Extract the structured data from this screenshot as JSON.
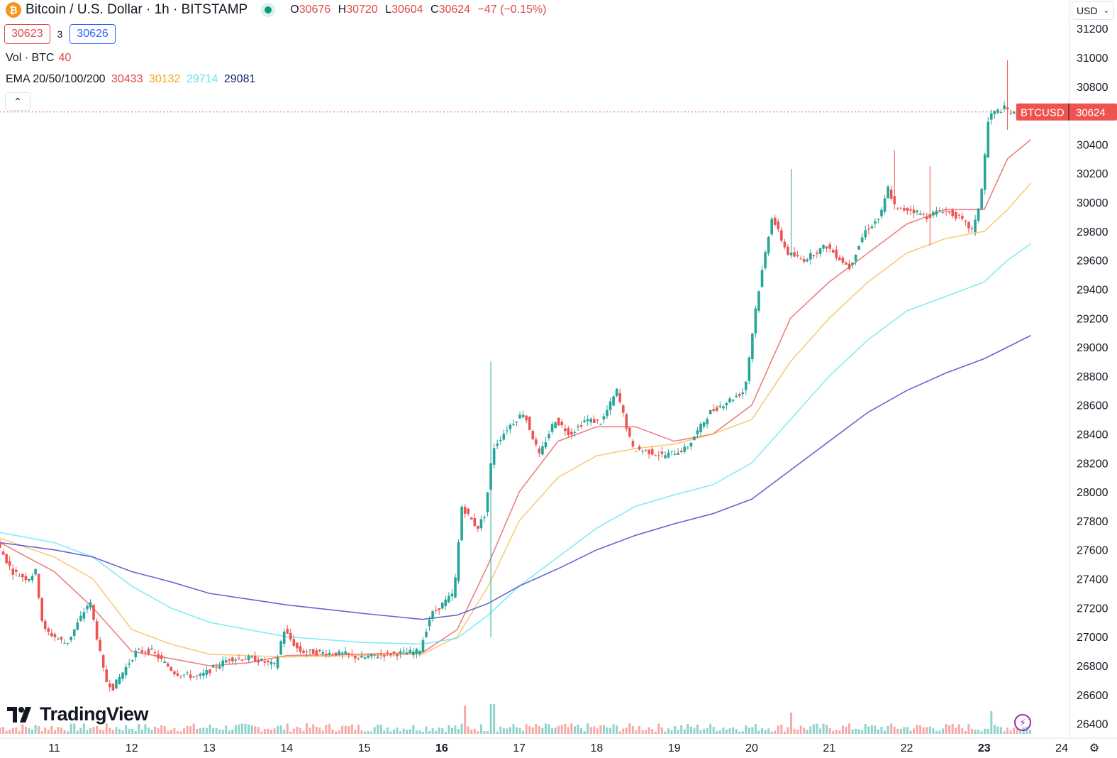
{
  "header": {
    "symbol_title": "Bitcoin / U.S. Dollar · 1h · BITSTAMP",
    "ohlc": {
      "open_label": "O",
      "open": "30676",
      "high_label": "H",
      "high": "30720",
      "low_label": "L",
      "low": "30604",
      "close_label": "C",
      "close": "30624",
      "change": "−47 (−0.15%)"
    },
    "sell_price": "30623",
    "spread": "3",
    "buy_price": "30626",
    "volume_label": "Vol · BTC",
    "volume_value": "40",
    "ema_label": "EMA 20/50/100/200",
    "ema_values": [
      "30433",
      "30132",
      "29714",
      "29081"
    ],
    "collapse_icon": "chevron-up-icon",
    "currency": "USD"
  },
  "watermark": "TradingView",
  "colors": {
    "up": "#26a69a",
    "down": "#ef5350",
    "ema20": "#e8605f",
    "ema50": "#f5a623",
    "ema100": "#59e6f0",
    "ema200": "#4a4acb"
  },
  "chart_data": {
    "type": "candlestick",
    "symbol": "BTCUSD",
    "interval": "1h",
    "last_price": 30624,
    "last_label": "BTCUSD",
    "y_axis": {
      "range": [
        26300,
        31250
      ],
      "ticks": [
        26400,
        26600,
        26800,
        27000,
        27200,
        27400,
        27600,
        27800,
        28000,
        28200,
        28400,
        28600,
        28800,
        29000,
        29200,
        29400,
        29600,
        29800,
        30000,
        30200,
        30400,
        30600,
        30800,
        31000,
        31200
      ]
    },
    "x_axis": {
      "range": [
        10.3,
        24.1
      ],
      "ticks": [
        {
          "label": "11",
          "day": 11,
          "bold": false
        },
        {
          "label": "12",
          "day": 12,
          "bold": false
        },
        {
          "label": "13",
          "day": 13,
          "bold": false
        },
        {
          "label": "14",
          "day": 14,
          "bold": false
        },
        {
          "label": "15",
          "day": 15,
          "bold": false
        },
        {
          "label": "16",
          "day": 16,
          "bold": true
        },
        {
          "label": "17",
          "day": 17,
          "bold": false
        },
        {
          "label": "18",
          "day": 18,
          "bold": false
        },
        {
          "label": "19",
          "day": 19,
          "bold": false
        },
        {
          "label": "20",
          "day": 20,
          "bold": false
        },
        {
          "label": "21",
          "day": 21,
          "bold": false
        },
        {
          "label": "22",
          "day": 22,
          "bold": false
        },
        {
          "label": "23",
          "day": 23,
          "bold": true
        },
        {
          "label": "24",
          "day": 24,
          "bold": false
        }
      ]
    },
    "price_path": [
      [
        10.3,
        27650
      ],
      [
        10.5,
        27450
      ],
      [
        10.7,
        27400
      ],
      [
        10.8,
        27450
      ],
      [
        10.9,
        27050
      ],
      [
        11.2,
        26950
      ],
      [
        11.5,
        27250
      ],
      [
        11.7,
        26700
      ],
      [
        11.8,
        26650
      ],
      [
        12.1,
        26900
      ],
      [
        12.3,
        26900
      ],
      [
        12.6,
        26750
      ],
      [
        12.9,
        26720
      ],
      [
        13.3,
        26850
      ],
      [
        13.6,
        26850
      ],
      [
        13.9,
        26800
      ],
      [
        14.0,
        27050
      ],
      [
        14.2,
        26900
      ],
      [
        14.5,
        26890
      ],
      [
        14.8,
        26880
      ],
      [
        15.0,
        26850
      ],
      [
        15.3,
        26880
      ],
      [
        15.6,
        26890
      ],
      [
        15.75,
        26900
      ],
      [
        15.9,
        27150
      ],
      [
        16.2,
        27300
      ],
      [
        16.3,
        27900
      ],
      [
        16.5,
        27750
      ],
      [
        16.6,
        27850
      ],
      [
        16.7,
        28300
      ],
      [
        16.9,
        28450
      ],
      [
        17.1,
        28550
      ],
      [
        17.3,
        28250
      ],
      [
        17.5,
        28500
      ],
      [
        17.7,
        28400
      ],
      [
        17.9,
        28500
      ],
      [
        18.1,
        28480
      ],
      [
        18.3,
        28700
      ],
      [
        18.5,
        28300
      ],
      [
        18.7,
        28280
      ],
      [
        18.9,
        28250
      ],
      [
        19.2,
        28300
      ],
      [
        19.5,
        28550
      ],
      [
        19.8,
        28650
      ],
      [
        19.95,
        28700
      ],
      [
        20.1,
        29300
      ],
      [
        20.3,
        29900
      ],
      [
        20.5,
        29650
      ],
      [
        20.7,
        29600
      ],
      [
        21.0,
        29700
      ],
      [
        21.3,
        29550
      ],
      [
        21.5,
        29800
      ],
      [
        21.7,
        29900
      ],
      [
        21.8,
        30100
      ],
      [
        21.9,
        29950
      ],
      [
        22.1,
        29950
      ],
      [
        22.3,
        29900
      ],
      [
        22.5,
        29950
      ],
      [
        22.7,
        29900
      ],
      [
        22.9,
        29800
      ],
      [
        23.0,
        30050
      ],
      [
        23.1,
        30600
      ],
      [
        23.3,
        30650
      ],
      [
        23.45,
        30600
      ],
      [
        23.6,
        30624
      ]
    ],
    "spikes": [
      {
        "day": 16.63,
        "high": 28900,
        "low": 27000
      },
      {
        "day": 20.52,
        "high": 30230,
        "low": 29700
      },
      {
        "day": 21.83,
        "high": 30360,
        "low": 29950
      },
      {
        "day": 22.3,
        "high": 30250,
        "low": 29700
      },
      {
        "day": 23.3,
        "high": 30980,
        "low": 30500
      }
    ],
    "ema_lines": [
      {
        "name": "EMA 20",
        "points": [
          [
            10.3,
            27650
          ],
          [
            11.0,
            27450
          ],
          [
            11.5,
            27200
          ],
          [
            12.0,
            26900
          ],
          [
            12.5,
            26850
          ],
          [
            13.0,
            26800
          ],
          [
            13.5,
            26820
          ],
          [
            14.0,
            26870
          ],
          [
            15.0,
            26880
          ],
          [
            15.75,
            26890
          ],
          [
            16.2,
            27050
          ],
          [
            16.6,
            27500
          ],
          [
            17.0,
            28000
          ],
          [
            17.5,
            28350
          ],
          [
            18.0,
            28450
          ],
          [
            18.5,
            28450
          ],
          [
            19.0,
            28350
          ],
          [
            19.5,
            28400
          ],
          [
            20.0,
            28600
          ],
          [
            20.5,
            29200
          ],
          [
            21.0,
            29450
          ],
          [
            21.5,
            29650
          ],
          [
            22.0,
            29850
          ],
          [
            22.5,
            29950
          ],
          [
            23.0,
            29950
          ],
          [
            23.3,
            30300
          ],
          [
            23.6,
            30433
          ]
        ]
      },
      {
        "name": "EMA 50",
        "points": [
          [
            10.3,
            27680
          ],
          [
            11.0,
            27550
          ],
          [
            11.5,
            27400
          ],
          [
            12.0,
            27050
          ],
          [
            12.5,
            26950
          ],
          [
            13.0,
            26880
          ],
          [
            14.0,
            26860
          ],
          [
            15.0,
            26870
          ],
          [
            15.75,
            26880
          ],
          [
            16.2,
            27000
          ],
          [
            16.6,
            27350
          ],
          [
            17.0,
            27800
          ],
          [
            17.5,
            28100
          ],
          [
            18.0,
            28250
          ],
          [
            18.5,
            28300
          ],
          [
            19.0,
            28330
          ],
          [
            19.5,
            28400
          ],
          [
            20.0,
            28500
          ],
          [
            20.5,
            28900
          ],
          [
            21.0,
            29200
          ],
          [
            21.5,
            29450
          ],
          [
            22.0,
            29650
          ],
          [
            22.5,
            29750
          ],
          [
            23.0,
            29800
          ],
          [
            23.3,
            29950
          ],
          [
            23.6,
            30132
          ]
        ]
      },
      {
        "name": "EMA 100",
        "points": [
          [
            10.3,
            27720
          ],
          [
            11.0,
            27650
          ],
          [
            11.5,
            27550
          ],
          [
            12.0,
            27350
          ],
          [
            12.5,
            27200
          ],
          [
            13.0,
            27100
          ],
          [
            14.0,
            27000
          ],
          [
            15.0,
            26960
          ],
          [
            15.75,
            26950
          ],
          [
            16.2,
            26990
          ],
          [
            16.6,
            27150
          ],
          [
            17.0,
            27350
          ],
          [
            17.5,
            27550
          ],
          [
            18.0,
            27750
          ],
          [
            18.5,
            27900
          ],
          [
            19.0,
            27980
          ],
          [
            19.5,
            28050
          ],
          [
            20.0,
            28200
          ],
          [
            20.5,
            28500
          ],
          [
            21.0,
            28800
          ],
          [
            21.5,
            29050
          ],
          [
            22.0,
            29250
          ],
          [
            22.5,
            29350
          ],
          [
            23.0,
            29450
          ],
          [
            23.3,
            29600
          ],
          [
            23.6,
            29714
          ]
        ]
      },
      {
        "name": "EMA 200",
        "points": [
          [
            10.3,
            27650
          ],
          [
            11.0,
            27600
          ],
          [
            11.5,
            27550
          ],
          [
            12.0,
            27450
          ],
          [
            12.5,
            27380
          ],
          [
            13.0,
            27300
          ],
          [
            14.0,
            27220
          ],
          [
            15.0,
            27160
          ],
          [
            15.75,
            27120
          ],
          [
            16.2,
            27150
          ],
          [
            16.6,
            27230
          ],
          [
            17.0,
            27350
          ],
          [
            17.5,
            27470
          ],
          [
            18.0,
            27600
          ],
          [
            18.5,
            27700
          ],
          [
            19.0,
            27780
          ],
          [
            19.5,
            27850
          ],
          [
            20.0,
            27950
          ],
          [
            20.5,
            28150
          ],
          [
            21.0,
            28350
          ],
          [
            21.5,
            28550
          ],
          [
            22.0,
            28700
          ],
          [
            22.5,
            28820
          ],
          [
            23.0,
            28920
          ],
          [
            23.3,
            29000
          ],
          [
            23.6,
            29081
          ]
        ]
      }
    ],
    "volume_spikes": [
      {
        "day": 16.3,
        "value": 40
      },
      {
        "day": 16.65,
        "value": 42
      },
      {
        "day": 20.5,
        "value": 30
      },
      {
        "day": 23.1,
        "value": 32
      }
    ],
    "grid": false,
    "legend": "top-left"
  }
}
